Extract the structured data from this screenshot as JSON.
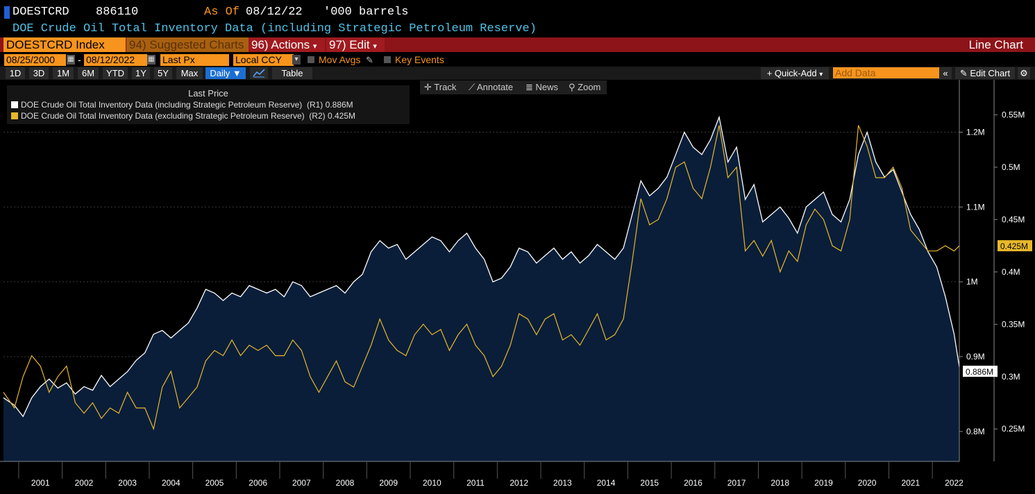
{
  "header": {
    "ticker": "DOESTCRD",
    "value": "886110",
    "as_of_label": "As Of",
    "as_of_date": "08/12/22",
    "units": "'000 barrels",
    "title": "DOE Crude Oil Total Inventory Data (including Strategic Petroleum Reserve)"
  },
  "redbar": {
    "security": "DOESTCRD Index",
    "suggested": "94) Suggested Charts",
    "actions": "96) Actions",
    "edit": "97) Edit",
    "chart_type": "Line Chart"
  },
  "controls": {
    "start_date": "08/25/2000",
    "dash": "-",
    "end_date": "08/12/2022",
    "field": "Last Px",
    "currency": "Local CCY",
    "mov_avgs": "Mov Avgs",
    "key_events": "Key Events"
  },
  "rangebar": {
    "ranges": [
      "1D",
      "3D",
      "1M",
      "6M",
      "YTD",
      "1Y",
      "5Y",
      "Max"
    ],
    "period": "Daily ▼",
    "table": "Table",
    "quick_add": "+ Quick-Add",
    "add_data_placeholder": "Add Data",
    "edit_chart": "Edit Chart"
  },
  "toolbar": {
    "track": "Track",
    "annotate": "Annotate",
    "news": "News",
    "zoom": "Zoom"
  },
  "legend": {
    "title": "Last Price",
    "items": [
      {
        "label": "DOE Crude Oil Total Inventory Data (including Strategic Petroleum Reserve)",
        "axis": "(R1)",
        "value": "0.886M",
        "color": "#ffffff"
      },
      {
        "label": "DOE Crude Oil Total Inventory Data (excluding Strategic Petroleum Reserve)",
        "axis": "(R2)",
        "value": "0.425M",
        "color": "#e8b82a"
      }
    ]
  },
  "colors": {
    "background": "#000000",
    "area_fill": "#0a1e3a",
    "series1": "#ffffff",
    "series2": "#e8b82a",
    "accent_orange": "#f7941d",
    "red_bar": "#8d1419"
  },
  "chart_data": {
    "type": "line",
    "x_years": [
      "2001",
      "2002",
      "2003",
      "2004",
      "2005",
      "2006",
      "2007",
      "2008",
      "2009",
      "2010",
      "2011",
      "2012",
      "2013",
      "2014",
      "2015",
      "2016",
      "2017",
      "2018",
      "2019",
      "2020",
      "2021",
      "2022"
    ],
    "x_range": [
      2000.65,
      2022.62
    ],
    "right_axis_1": {
      "ticks": [
        "0.8M",
        "0.9M",
        "1M",
        "1.1M",
        "1.2M"
      ],
      "tick_values": [
        0.8,
        0.9,
        1.0,
        1.1,
        1.2
      ],
      "range": [
        0.76,
        1.27
      ],
      "last_label": "0.886M"
    },
    "right_axis_2": {
      "ticks": [
        "0.25M",
        "0.3M",
        "0.35M",
        "0.4M",
        "0.45M",
        "0.5M",
        "0.55M"
      ],
      "tick_values": [
        0.25,
        0.3,
        0.35,
        0.4,
        0.45,
        0.5,
        0.55
      ],
      "range": [
        0.219,
        0.5835
      ],
      "last_label": "0.425M"
    },
    "series": [
      {
        "name": "DOE Crude Oil Total Inventory Data (including Strategic Petroleum Reserve)",
        "axis": "R1",
        "x": [
          2000.65,
          2000.9,
          2001.1,
          2001.3,
          2001.5,
          2001.7,
          2001.9,
          2002.1,
          2002.3,
          2002.5,
          2002.7,
          2002.9,
          2003.1,
          2003.3,
          2003.5,
          2003.7,
          2003.9,
          2004.1,
          2004.3,
          2004.5,
          2004.7,
          2004.9,
          2005.1,
          2005.3,
          2005.5,
          2005.7,
          2005.9,
          2006.1,
          2006.3,
          2006.5,
          2006.7,
          2006.9,
          2007.1,
          2007.3,
          2007.5,
          2007.7,
          2007.9,
          2008.1,
          2008.3,
          2008.5,
          2008.7,
          2008.9,
          2009.1,
          2009.3,
          2009.5,
          2009.7,
          2009.9,
          2010.1,
          2010.3,
          2010.5,
          2010.7,
          2010.9,
          2011.1,
          2011.3,
          2011.5,
          2011.7,
          2011.9,
          2012.1,
          2012.3,
          2012.5,
          2012.7,
          2012.9,
          2013.1,
          2013.3,
          2013.5,
          2013.7,
          2013.9,
          2014.1,
          2014.3,
          2014.5,
          2014.7,
          2014.9,
          2015.1,
          2015.3,
          2015.5,
          2015.7,
          2015.9,
          2016.1,
          2016.3,
          2016.5,
          2016.7,
          2016.9,
          2017.1,
          2017.3,
          2017.5,
          2017.7,
          2017.9,
          2018.1,
          2018.3,
          2018.5,
          2018.7,
          2018.9,
          2019.1,
          2019.3,
          2019.5,
          2019.7,
          2019.9,
          2020.1,
          2020.3,
          2020.5,
          2020.7,
          2020.9,
          2021.1,
          2021.3,
          2021.5,
          2021.7,
          2021.9,
          2022.1,
          2022.3,
          2022.5,
          2022.62
        ],
        "values": [
          0.845,
          0.835,
          0.82,
          0.845,
          0.86,
          0.87,
          0.858,
          0.865,
          0.85,
          0.86,
          0.855,
          0.875,
          0.86,
          0.87,
          0.88,
          0.895,
          0.905,
          0.93,
          0.935,
          0.925,
          0.935,
          0.945,
          0.965,
          0.99,
          0.985,
          0.975,
          0.985,
          0.98,
          0.995,
          0.99,
          0.985,
          0.99,
          0.98,
          1.0,
          0.995,
          0.98,
          0.985,
          0.99,
          0.995,
          0.985,
          1.0,
          1.01,
          1.04,
          1.055,
          1.045,
          1.05,
          1.03,
          1.04,
          1.05,
          1.06,
          1.055,
          1.04,
          1.055,
          1.065,
          1.045,
          1.03,
          1.0,
          1.005,
          1.02,
          1.045,
          1.04,
          1.025,
          1.035,
          1.045,
          1.03,
          1.04,
          1.025,
          1.035,
          1.05,
          1.04,
          1.03,
          1.045,
          1.09,
          1.135,
          1.115,
          1.125,
          1.14,
          1.17,
          1.2,
          1.18,
          1.17,
          1.19,
          1.22,
          1.16,
          1.18,
          1.11,
          1.13,
          1.08,
          1.09,
          1.1,
          1.085,
          1.065,
          1.1,
          1.11,
          1.12,
          1.09,
          1.08,
          1.11,
          1.17,
          1.2,
          1.16,
          1.14,
          1.15,
          1.12,
          1.09,
          1.07,
          1.04,
          1.02,
          0.98,
          0.93,
          0.886
        ]
      },
      {
        "name": "DOE Crude Oil Total Inventory Data (excluding Strategic Petroleum Reserve)",
        "axis": "R2",
        "x": [
          2000.65,
          2000.9,
          2001.1,
          2001.3,
          2001.5,
          2001.7,
          2001.9,
          2002.1,
          2002.3,
          2002.5,
          2002.7,
          2002.9,
          2003.1,
          2003.3,
          2003.5,
          2003.7,
          2003.9,
          2004.1,
          2004.3,
          2004.5,
          2004.7,
          2004.9,
          2005.1,
          2005.3,
          2005.5,
          2005.7,
          2005.9,
          2006.1,
          2006.3,
          2006.5,
          2006.7,
          2006.9,
          2007.1,
          2007.3,
          2007.5,
          2007.7,
          2007.9,
          2008.1,
          2008.3,
          2008.5,
          2008.7,
          2008.9,
          2009.1,
          2009.3,
          2009.5,
          2009.7,
          2009.9,
          2010.1,
          2010.3,
          2010.5,
          2010.7,
          2010.9,
          2011.1,
          2011.3,
          2011.5,
          2011.7,
          2011.9,
          2012.1,
          2012.3,
          2012.5,
          2012.7,
          2012.9,
          2013.1,
          2013.3,
          2013.5,
          2013.7,
          2013.9,
          2014.1,
          2014.3,
          2014.5,
          2014.7,
          2014.9,
          2015.1,
          2015.3,
          2015.5,
          2015.7,
          2015.9,
          2016.1,
          2016.3,
          2016.5,
          2016.7,
          2016.9,
          2017.1,
          2017.3,
          2017.5,
          2017.7,
          2017.9,
          2018.1,
          2018.3,
          2018.5,
          2018.7,
          2018.9,
          2019.1,
          2019.3,
          2019.5,
          2019.7,
          2019.9,
          2020.1,
          2020.3,
          2020.5,
          2020.7,
          2020.9,
          2021.1,
          2021.3,
          2021.5,
          2021.7,
          2021.9,
          2022.1,
          2022.3,
          2022.5,
          2022.62
        ],
        "values": [
          0.285,
          0.27,
          0.3,
          0.32,
          0.31,
          0.285,
          0.3,
          0.31,
          0.275,
          0.265,
          0.275,
          0.26,
          0.27,
          0.265,
          0.285,
          0.27,
          0.27,
          0.25,
          0.29,
          0.305,
          0.27,
          0.28,
          0.29,
          0.315,
          0.325,
          0.32,
          0.335,
          0.32,
          0.33,
          0.325,
          0.33,
          0.32,
          0.32,
          0.335,
          0.325,
          0.3,
          0.285,
          0.3,
          0.315,
          0.295,
          0.29,
          0.31,
          0.33,
          0.355,
          0.335,
          0.325,
          0.32,
          0.34,
          0.35,
          0.34,
          0.345,
          0.325,
          0.34,
          0.35,
          0.33,
          0.32,
          0.3,
          0.31,
          0.33,
          0.36,
          0.355,
          0.34,
          0.355,
          0.36,
          0.335,
          0.34,
          0.33,
          0.345,
          0.36,
          0.335,
          0.34,
          0.355,
          0.41,
          0.47,
          0.445,
          0.45,
          0.47,
          0.5,
          0.505,
          0.48,
          0.47,
          0.5,
          0.54,
          0.49,
          0.5,
          0.42,
          0.43,
          0.415,
          0.43,
          0.4,
          0.42,
          0.41,
          0.445,
          0.46,
          0.45,
          0.425,
          0.42,
          0.45,
          0.54,
          0.52,
          0.49,
          0.49,
          0.5,
          0.48,
          0.44,
          0.43,
          0.42,
          0.42,
          0.425,
          0.42,
          0.425
        ]
      }
    ],
    "grid": "horizontal dashed",
    "legend_position": "top-left"
  }
}
